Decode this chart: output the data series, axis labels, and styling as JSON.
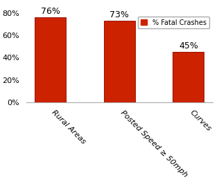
{
  "categories": [
    "Rural Areas",
    "Posted Speed ≥ 50mph",
    "Curves"
  ],
  "values": [
    76,
    73,
    45
  ],
  "bar_color": "#cc2200",
  "bar_edge_color": "#991100",
  "ylim": [
    0,
    80
  ],
  "yticks": [
    0,
    20,
    40,
    60,
    80
  ],
  "ytick_labels": [
    "0%",
    "20%",
    "40%",
    "60%",
    "80%"
  ],
  "legend_label": "% Fatal Crashes",
  "legend_color": "#cc2200",
  "bar_width": 0.45,
  "value_labels": [
    "76%",
    "73%",
    "45%"
  ],
  "background_color": "#ffffff",
  "label_fontsize": 8,
  "value_fontsize": 9,
  "title_fontsize": 9
}
